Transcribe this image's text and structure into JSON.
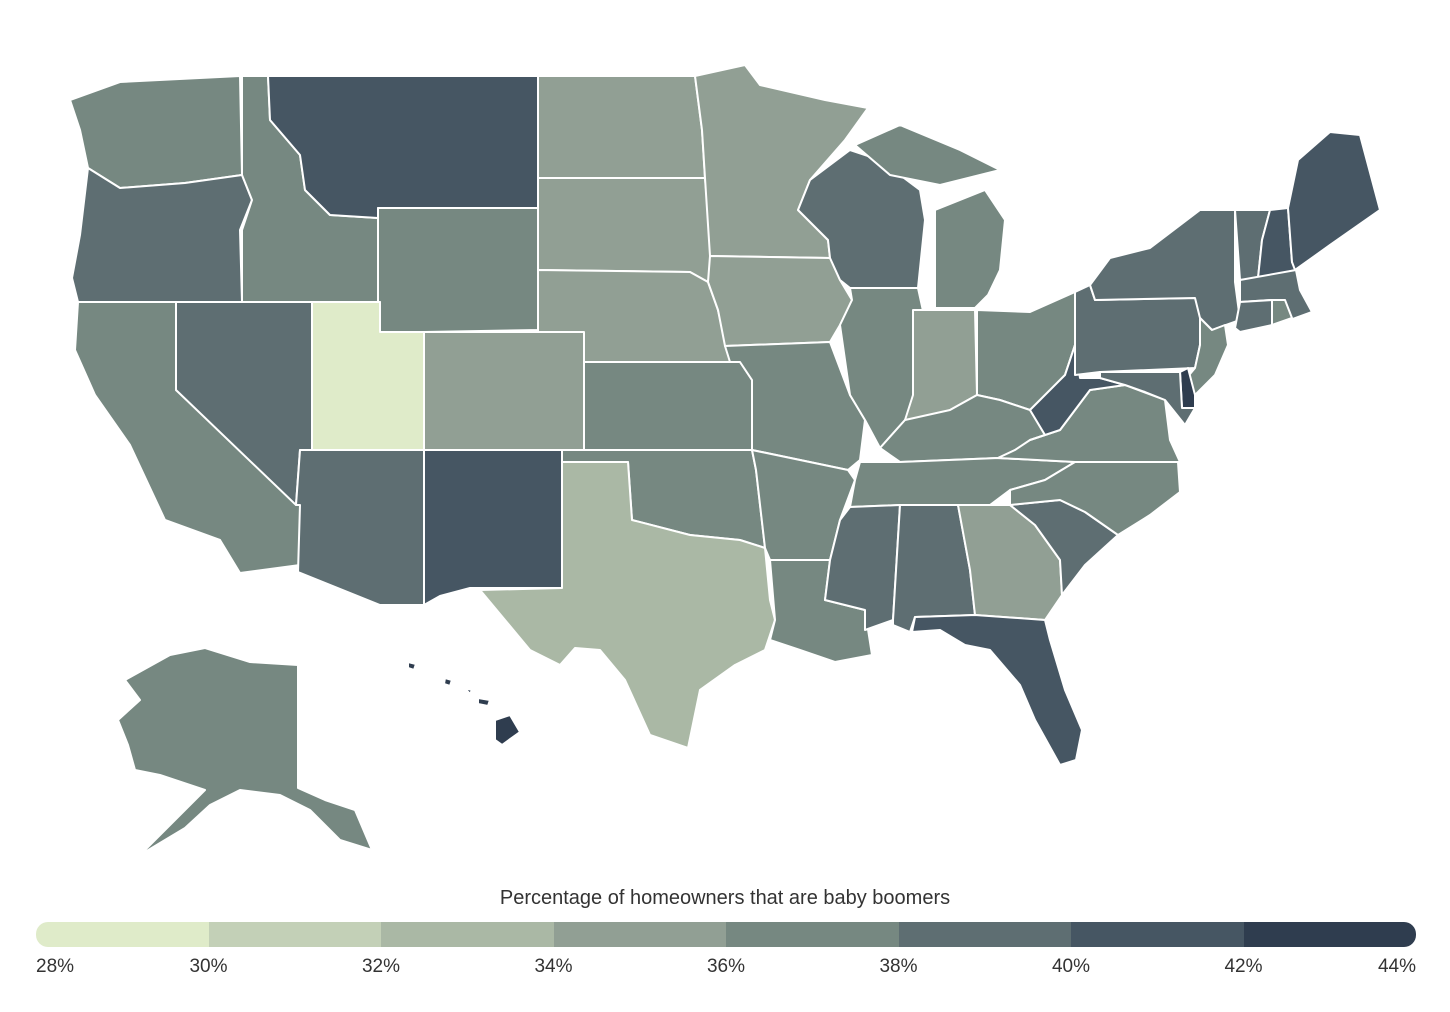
{
  "legend": {
    "title": "Percentage of homeowners that are baby boomers",
    "ticks": [
      "28%",
      "30%",
      "32%",
      "34%",
      "36%",
      "38%",
      "40%",
      "42%",
      "44%"
    ],
    "colors": [
      "#dfebc9",
      "#c3d0b7",
      "#aab8a5",
      "#919f94",
      "#768881",
      "#5e6e72",
      "#465663",
      "#2f3d4f"
    ]
  },
  "chart_data": {
    "type": "choropleth",
    "title": "Percentage of homeowners that are baby boomers",
    "unit": "%",
    "bins": [
      [
        28,
        30
      ],
      [
        30,
        32
      ],
      [
        32,
        34
      ],
      [
        34,
        36
      ],
      [
        36,
        38
      ],
      [
        38,
        40
      ],
      [
        40,
        42
      ],
      [
        42,
        44
      ]
    ],
    "states": {
      "WA": 5,
      "OR": 6,
      "CA": 5,
      "NV": 6,
      "ID": 5,
      "MT": 7,
      "WY": 5,
      "UT": 1,
      "CO": 4,
      "AZ": 6,
      "NM": 7,
      "ND": 4,
      "SD": 4,
      "NE": 4,
      "KS": 5,
      "OK": 5,
      "TX": 3,
      "MN": 4,
      "IA": 4,
      "MO": 5,
      "AR": 5,
      "LA": 5,
      "WI": 6,
      "IL": 5,
      "MI": 5,
      "IN": 4,
      "OH": 5,
      "KY": 5,
      "TN": 5,
      "MS": 6,
      "AL": 6,
      "GA": 4,
      "FL": 7,
      "SC": 6,
      "NC": 5,
      "VA": 5,
      "WV": 7,
      "PA": 6,
      "NY": 6,
      "NJ": 5,
      "DE": 8,
      "MD": 6,
      "VT": 6,
      "NH": 7,
      "ME": 7,
      "MA": 6,
      "CT": 6,
      "RI": 5,
      "AK": 5,
      "HI": 8
    }
  }
}
